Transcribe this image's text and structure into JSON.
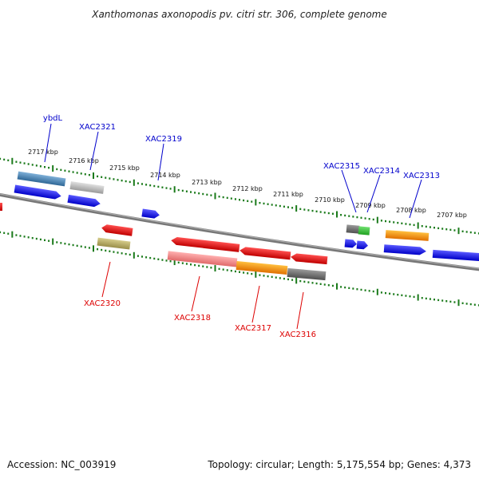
{
  "title": "Xanthomonas axonopodis pv. citri str. 306, complete genome",
  "footer": {
    "accession": "Accession: NC_003919",
    "info": "Topology: circular; Length: 5,175,554 bp; Genes: 4,373"
  },
  "colors": {
    "forward_label": "#0000cc",
    "reverse_label": "#dd0000",
    "backbone": "#888888",
    "scale": "#1a7a1a"
  },
  "scale_labels": [
    "2717 kbp",
    "2716 kbp",
    "2715 kbp",
    "2714 kbp",
    "2713 kbp",
    "2712 kbp",
    "2711 kbp",
    "2710 kbp",
    "2709 kbp",
    "2708 kbp",
    "2707 kbp"
  ],
  "gene_labels_top": [
    "ybdL",
    "XAC2321",
    "XAC2319",
    "XAC2315",
    "XAC2314",
    "XAC2313"
  ],
  "gene_labels_bottom": [
    "XAC2320",
    "XAC2318",
    "XAC2317",
    "XAC2316"
  ]
}
